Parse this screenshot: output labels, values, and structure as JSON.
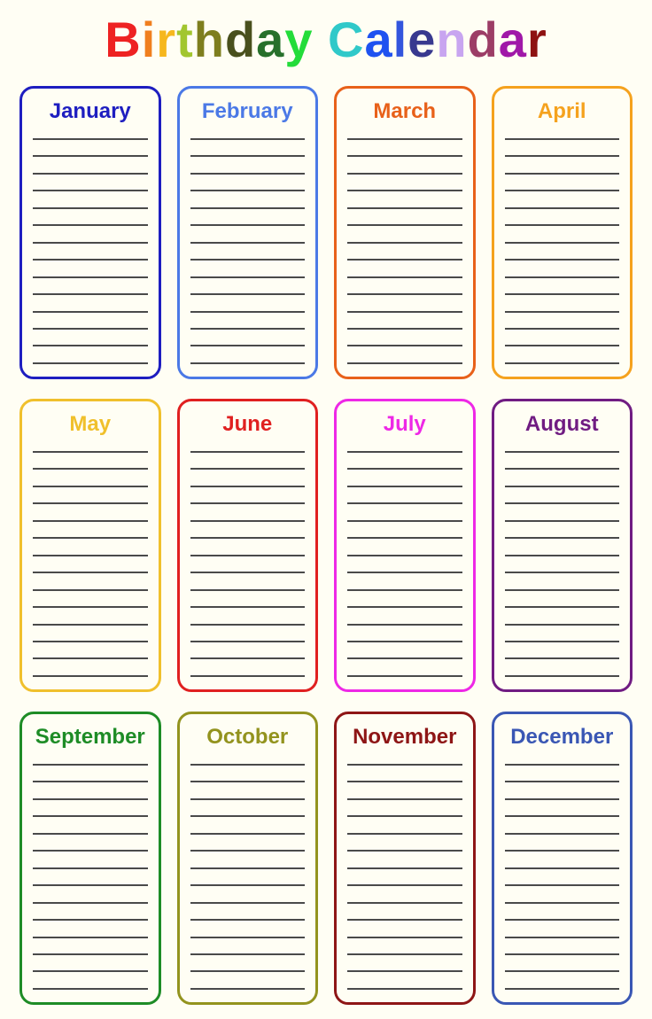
{
  "page": {
    "background": "#fffef4"
  },
  "title": {
    "text": "Birthday Calendar",
    "letters": [
      {
        "ch": "B",
        "color": "#ee2222"
      },
      {
        "ch": "i",
        "color": "#f07f1e"
      },
      {
        "ch": "r",
        "color": "#f6b71e"
      },
      {
        "ch": "t",
        "color": "#a2c62f"
      },
      {
        "ch": "h",
        "color": "#7e7e1e"
      },
      {
        "ch": "d",
        "color": "#49501d"
      },
      {
        "ch": "a",
        "color": "#27702b"
      },
      {
        "ch": "y",
        "color": "#23dc3a"
      },
      {
        "ch": " ",
        "color": "#000000"
      },
      {
        "ch": "C",
        "color": "#30c9c9"
      },
      {
        "ch": "a",
        "color": "#1f52f0"
      },
      {
        "ch": "l",
        "color": "#3355dd"
      },
      {
        "ch": "e",
        "color": "#38398f"
      },
      {
        "ch": "n",
        "color": "#c8a5f0"
      },
      {
        "ch": "d",
        "color": "#9c3d66"
      },
      {
        "ch": "a",
        "color": "#a018a8"
      },
      {
        "ch": "r",
        "color": "#8e1212"
      }
    ]
  },
  "calendar": {
    "lines_per_month": 14,
    "line_color": "#4a4a4a",
    "months": [
      {
        "name": "January",
        "color": "#1e1ec0"
      },
      {
        "name": "February",
        "color": "#4b79e6"
      },
      {
        "name": "March",
        "color": "#e8611a"
      },
      {
        "name": "April",
        "color": "#f5a21e"
      },
      {
        "name": "May",
        "color": "#f0c02c"
      },
      {
        "name": "June",
        "color": "#e02020"
      },
      {
        "name": "July",
        "color": "#ee28e6"
      },
      {
        "name": "August",
        "color": "#701c82"
      },
      {
        "name": "September",
        "color": "#1e8c26"
      },
      {
        "name": "October",
        "color": "#93931e"
      },
      {
        "name": "November",
        "color": "#8e1616"
      },
      {
        "name": "December",
        "color": "#3a57b4"
      }
    ]
  }
}
